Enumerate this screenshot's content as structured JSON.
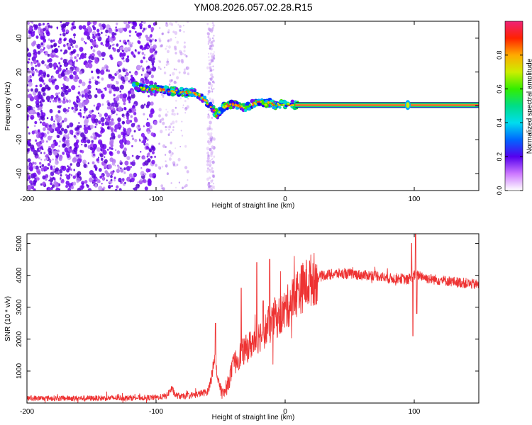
{
  "title": "YM08.2026.057.02.28.R15",
  "chart_data": [
    {
      "type": "heatmap",
      "name": "spectrogram",
      "title": "YM08.2026.057.02.28.R15",
      "xlabel": "Height of straight line (km)",
      "ylabel": "Frequency (Hz)",
      "xlim": [
        -200,
        150
      ],
      "ylim": [
        -50,
        50
      ],
      "x_ticks": [
        -200,
        -100,
        0,
        100
      ],
      "y_ticks": [
        -40,
        -20,
        0,
        20,
        40
      ],
      "colorbar": {
        "label": "Normalized spectral amplitude",
        "range": [
          0,
          1
        ],
        "ticks": [
          0.0,
          0.2,
          0.4,
          0.6,
          0.8
        ],
        "tick_labels": [
          "0.0",
          "0.2",
          "0.4",
          "0.6",
          "0.8"
        ]
      },
      "ridge": {
        "x": [
          -117,
          -110,
          -100,
          -90,
          -80,
          -72,
          -66,
          -62,
          -58,
          -55,
          -52,
          -50,
          -46,
          -40,
          -35,
          -30,
          -25,
          -20,
          -15,
          -12,
          -8,
          -5,
          0,
          5,
          10,
          150
        ],
        "y": [
          12,
          10,
          10,
          9,
          8,
          8,
          6,
          3,
          0,
          -3,
          -6,
          -2,
          0,
          1,
          0,
          -1,
          1,
          3,
          1,
          2,
          0,
          1,
          1,
          1,
          0.5,
          0.5
        ]
      },
      "scatter_regions": [
        {
          "x": [
            -200,
            -100
          ],
          "y": [
            -50,
            50
          ],
          "intensity": "dense"
        },
        {
          "x": [
            -98,
            -75
          ],
          "y": [
            -50,
            50
          ],
          "intensity": "faint"
        },
        {
          "x": [
            -60,
            -55
          ],
          "y": [
            -50,
            50
          ],
          "intensity": "faint"
        }
      ]
    },
    {
      "type": "line",
      "name": "snr",
      "xlabel": "Height of straight line (km)",
      "ylabel": "SNR (10 * v/v)",
      "xlim": [
        -200,
        150
      ],
      "ylim": [
        0,
        5300
      ],
      "x_ticks": [
        -200,
        -100,
        0,
        100
      ],
      "y_ticks": [
        1000,
        2000,
        3000,
        4000,
        5000
      ],
      "color": "#ee3333",
      "trend": {
        "x": [
          -200,
          -150,
          -100,
          -92,
          -88,
          -85,
          -80,
          -70,
          -60,
          -57,
          -55,
          -52,
          -48,
          -45,
          -40,
          -35,
          -30,
          -25,
          -20,
          -15,
          -10,
          -5,
          0,
          5,
          10,
          20,
          30,
          40,
          50,
          60,
          70,
          80,
          90,
          95,
          100,
          105,
          110,
          120,
          130,
          140,
          150
        ],
        "y": [
          150,
          150,
          170,
          220,
          450,
          250,
          200,
          260,
          350,
          800,
          1500,
          700,
          250,
          500,
          1200,
          1500,
          1700,
          1900,
          2100,
          2300,
          2500,
          2700,
          2900,
          3200,
          3500,
          3850,
          4000,
          4050,
          4050,
          4000,
          4000,
          3900,
          3900,
          3850,
          4000,
          4000,
          3900,
          3850,
          3800,
          3750,
          3700
        ]
      },
      "spikes": [
        {
          "x": -54,
          "y": 2500
        },
        {
          "x": -34,
          "y": 3600
        },
        {
          "x": -22,
          "y": 4400
        },
        {
          "x": -17,
          "y": 3200
        },
        {
          "x": -12,
          "y": 4500
        },
        {
          "x": -8,
          "y": 3300
        },
        {
          "x": 98,
          "y": 5000
        },
        {
          "x": 99,
          "y": 2100
        },
        {
          "x": 101,
          "y": 5300
        },
        {
          "x": 102,
          "y": 2800
        }
      ]
    }
  ]
}
